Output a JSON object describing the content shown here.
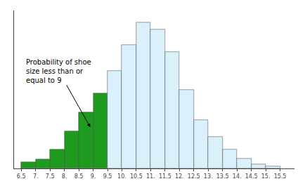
{
  "chart_data": {
    "type": "histogram",
    "bins": [
      6.5,
      7.0,
      7.5,
      8.0,
      8.5,
      9.0,
      9.5,
      10.0,
      10.5,
      11.0,
      11.5,
      12.0,
      12.5,
      13.0,
      13.5,
      14.0,
      14.5,
      15.0,
      15.5
    ],
    "values": [
      0.008,
      0.012,
      0.025,
      0.05,
      0.075,
      0.1,
      0.13,
      0.165,
      0.195,
      0.185,
      0.155,
      0.105,
      0.065,
      0.042,
      0.025,
      0.013,
      0.006,
      0.003
    ],
    "colors": [
      "#1e9a1e",
      "#1e9a1e",
      "#1e9a1e",
      "#1e9a1e",
      "#1e9a1e",
      "#1e9a1e",
      "#daf0fa",
      "#daf0fa",
      "#daf0fa",
      "#daf0fa",
      "#daf0fa",
      "#daf0fa",
      "#daf0fa",
      "#daf0fa",
      "#daf0fa",
      "#daf0fa",
      "#daf0fa",
      "#daf0fa"
    ],
    "xlim": [
      6.25,
      16.0
    ],
    "xticks": [
      6.5,
      {
        "value": 7.0,
        "label": "7."
      },
      7.5,
      {
        "value": 8.0,
        "label": "8."
      },
      8.5,
      {
        "value": 9.0,
        "label": "9."
      },
      9.5,
      {
        "value": 10.0,
        "label": "10."
      },
      10.5,
      {
        "value": 11.0,
        "label": "11."
      },
      11.5,
      {
        "value": 12.0,
        "label": "12."
      },
      12.5,
      {
        "value": 13.0,
        "label": "13."
      },
      13.5,
      {
        "value": 14.0,
        "label": "14."
      },
      14.5,
      {
        "value": 15.0,
        "label": "15."
      },
      15.5
    ],
    "ylim": [
      0,
      0.2106
    ],
    "yticks": [],
    "tick_labels": "x",
    "grid": false,
    "annotations": [
      {
        "text": "Probability of shoe\nsize less than or\nequal to 9",
        "x": 8.9,
        "y": 0.055
      }
    ]
  }
}
